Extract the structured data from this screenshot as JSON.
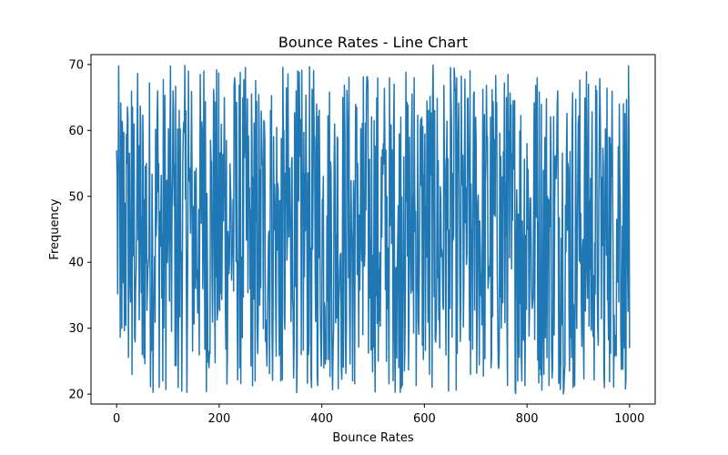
{
  "chart_data": {
    "type": "line",
    "title": "Bounce Rates - Line Chart",
    "xlabel": "Bounce Rates",
    "ylabel": "Frequency",
    "xlim": [
      -50,
      1050
    ],
    "ylim": [
      18.5,
      71.5
    ],
    "xticks": [
      0,
      200,
      400,
      600,
      800,
      1000
    ],
    "yticks": [
      20,
      30,
      40,
      50,
      60,
      70
    ],
    "grid": false,
    "legend": "none",
    "series": [
      {
        "color": "#1f77b4",
        "n_points": 1000,
        "x_start": 0,
        "x_end": 1000,
        "y_min": 20,
        "y_max": 70,
        "first_value": 57,
        "last_value": 27,
        "sampled_values": [
          57,
          30,
          55,
          23,
          60,
          26,
          36,
          44,
          66,
          22,
          44,
          66,
          21,
          60,
          69,
          32,
          48,
          69,
          24,
          64,
          33,
          65,
          40,
          68,
          24,
          58,
          36,
          22,
          54,
          28,
          63,
          35,
          22,
          49,
          31,
          66,
          26,
          53,
          21,
          64,
          30,
          47,
          25,
          59,
          36,
          62,
          22,
          55,
          29,
          67,
          41,
          25,
          58,
          33,
          61,
          24,
          56,
          30,
          68,
          38,
          51,
          23,
          63,
          27,
          55,
          33,
          66,
          28,
          46,
          23,
          62,
          35,
          55,
          24,
          60,
          30,
          65,
          39,
          51,
          22,
          58,
          33,
          68,
          27,
          50,
          24,
          66,
          36,
          55,
          21,
          61,
          29,
          67,
          38,
          49,
          23,
          59,
          32,
          64,
          27
        ]
      }
    ]
  }
}
